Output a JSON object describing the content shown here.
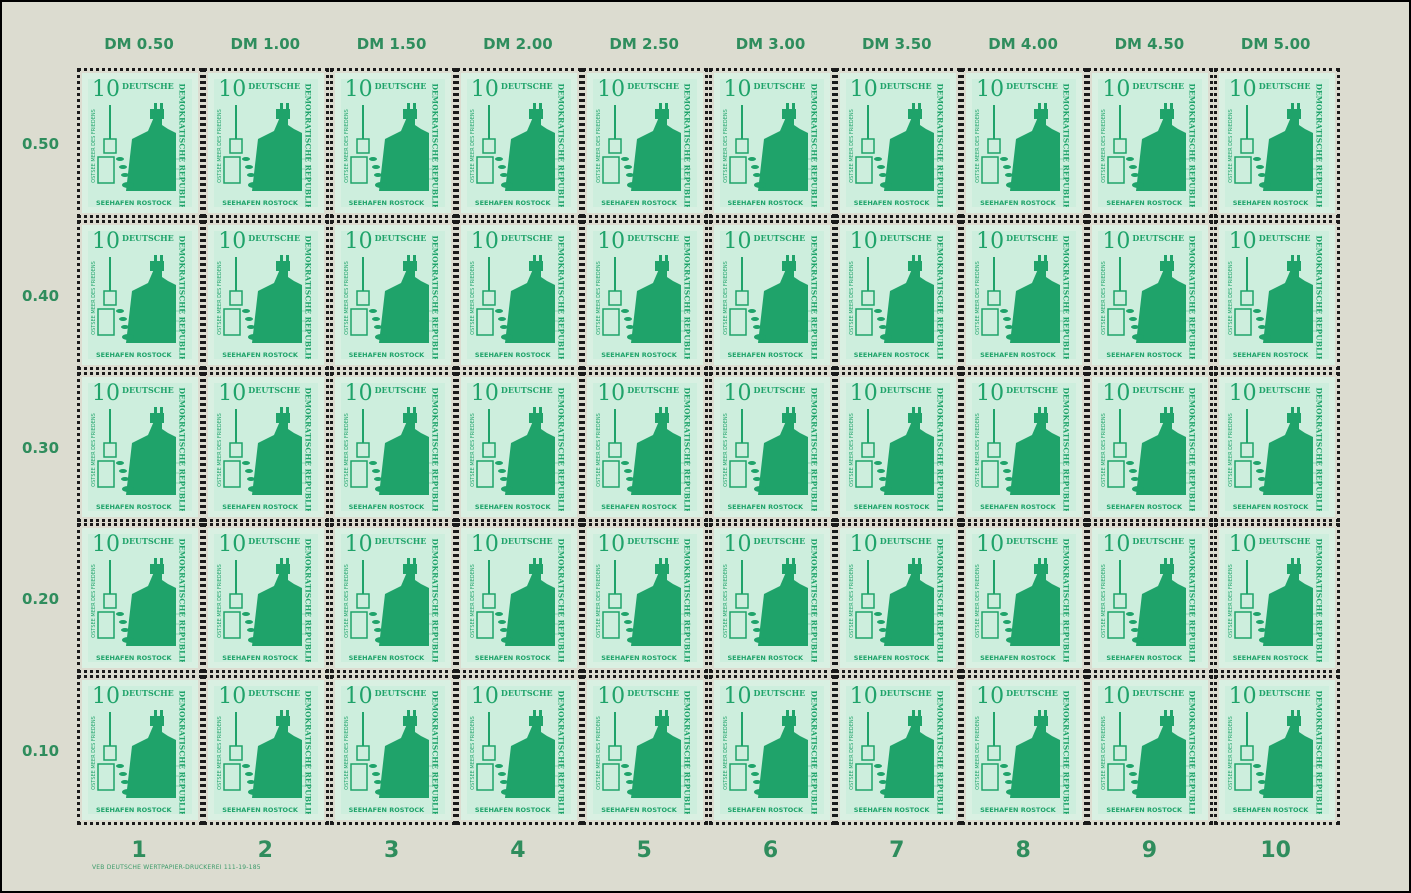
{
  "sheet": {
    "column_values": [
      "DM 0.50",
      "DM 1.00",
      "DM 1.50",
      "DM 2.00",
      "DM 2.50",
      "DM 3.00",
      "DM 3.50",
      "DM 4.00",
      "DM 4.50",
      "DM 5.00"
    ],
    "row_values": [
      "0.50",
      "0.40",
      "0.30",
      "0.20",
      "0.10"
    ],
    "column_numbers": [
      "1",
      "2",
      "3",
      "4",
      "5",
      "6",
      "7",
      "8",
      "9",
      "10"
    ],
    "imprint": "VEB DEUTSCHE WERTPAPIER-DRUCKEREI  111-19-185"
  },
  "stamp": {
    "value": "10",
    "country_top": "DEUTSCHE",
    "country_side": "DEMOKRATISCHE REPUBLIK",
    "side_text": "OSTSEE MEER DES FRIEDENS",
    "caption": "SEEHAFEN ROSTOCK",
    "colors": {
      "ink": "#1fa36a",
      "paper": "#cdeedd",
      "margin": "#dcdcd0",
      "margin_text": "#2f8d5d"
    },
    "rows": 5,
    "columns": 10
  }
}
